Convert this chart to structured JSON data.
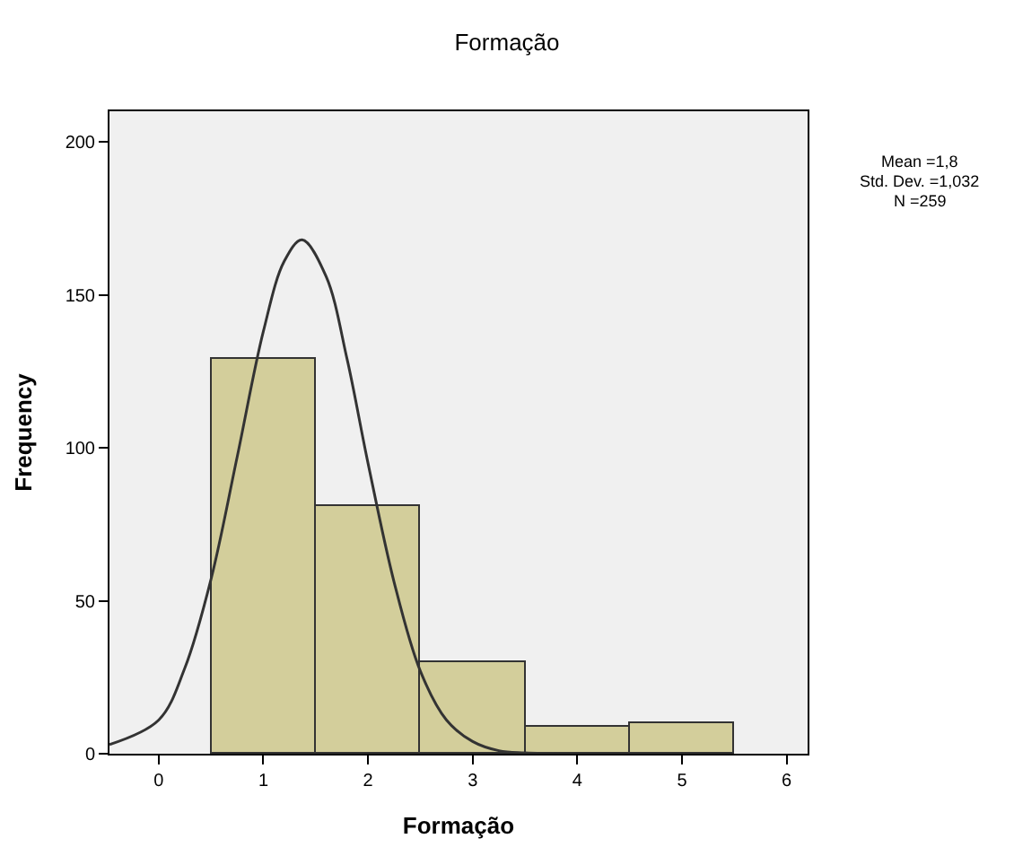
{
  "chart_data": {
    "type": "histogram",
    "title": "Formação",
    "xlabel": "Formação",
    "ylabel": "Frequency",
    "bins": [
      0.5,
      1.5,
      2.5,
      3.5,
      4.5,
      5.5
    ],
    "values": [
      129,
      81,
      30,
      9,
      10
    ],
    "color": "#d3ce9b",
    "series": [
      {
        "type": "line",
        "color": "#333333",
        "x": [
          -0.47,
          0,
          0.25,
          0.5,
          0.75,
          1.0,
          1.2,
          1.37,
          1.6,
          1.8,
          2.0,
          2.25,
          2.5,
          2.75,
          3.0,
          3.25,
          3.5,
          4.0,
          4.5
        ],
        "values": [
          3,
          11,
          28,
          57,
          97,
          138,
          161,
          168,
          156,
          129,
          95,
          56,
          27,
          11,
          4,
          1,
          0.3,
          0,
          0
        ]
      }
    ],
    "xlim": [
      -0.47,
      6.2
    ],
    "ylim": [
      0,
      210
    ],
    "xticks": [
      0,
      1,
      2,
      3,
      4,
      5,
      6
    ],
    "yticks": [
      0,
      50,
      100,
      150,
      200
    ],
    "grid": false,
    "annotations": [
      "Mean =1,8",
      "Std. Dev. =1,032",
      "N =259"
    ]
  }
}
